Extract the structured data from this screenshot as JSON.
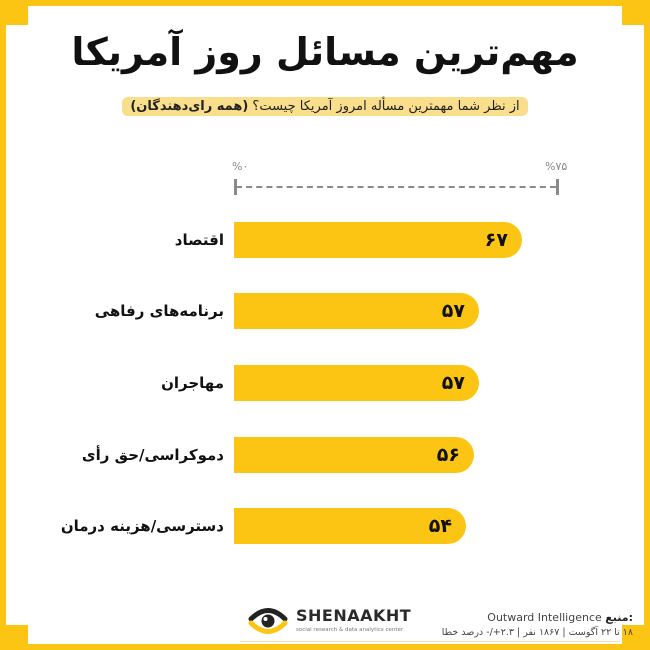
{
  "title": "مهم‌ترین مسائل روز آمریکا",
  "subtitle": {
    "question": "از نظر شما مهمترین مسأله امروز آمریکا چیست؟",
    "group": "(همه رای‌دهندگان)"
  },
  "axis": {
    "min_label": "%۰",
    "max_label": "%۷۵"
  },
  "colors": {
    "accent": "#FDC513",
    "subtitle_bg": "#F9DE8C",
    "axis": "#8a8a8a"
  },
  "bars": [
    {
      "label": "اقتصاد",
      "value": 67,
      "value_label": "۶۷"
    },
    {
      "label": "برنامه‌های رفاهی",
      "value": 57,
      "value_label": "۵۷"
    },
    {
      "label": "مهاجران",
      "value": 57,
      "value_label": "۵۷"
    },
    {
      "label": "دموکراسی/حق رأی",
      "value": 56,
      "value_label": "۵۶"
    },
    {
      "label": "دسترسی/هزینه درمان",
      "value": 54,
      "value_label": "۵۴"
    }
  ],
  "footer": {
    "brand": "SHENAAKHT",
    "brand_tagline": "social research & data analytics center",
    "source_label": "منبع:",
    "source_name": "Outward Intelligence",
    "details": "۱۸ تا ۲۲ آگوست | ۱۸۶۷ نفر | ۲.۳+/- درصد خطا"
  },
  "chart_data": {
    "type": "bar",
    "orientation": "horizontal",
    "title": "مهم‌ترین مسائل روز آمریکا",
    "subtitle": "از نظر شما مهمترین مسأله امروز آمریکا چیست؟ (همه رای‌دهندگان)",
    "categories": [
      "اقتصاد",
      "برنامه‌های رفاهی",
      "مهاجران",
      "دموکراسی/حق رأی",
      "دسترسی/هزینه درمان"
    ],
    "values": [
      67,
      57,
      57,
      56,
      54
    ],
    "unit": "%",
    "xlim": [
      0,
      75
    ],
    "tick_labels": [
      "%۰",
      "%۷۵"
    ],
    "grid": false,
    "legend": null,
    "xlabel": "",
    "ylabel": "",
    "source": "Outward Intelligence",
    "notes": "۱۸ تا ۲۲ آگوست | ۱۸۶۷ نفر | ۲.۳+/- درصد خطا"
  }
}
